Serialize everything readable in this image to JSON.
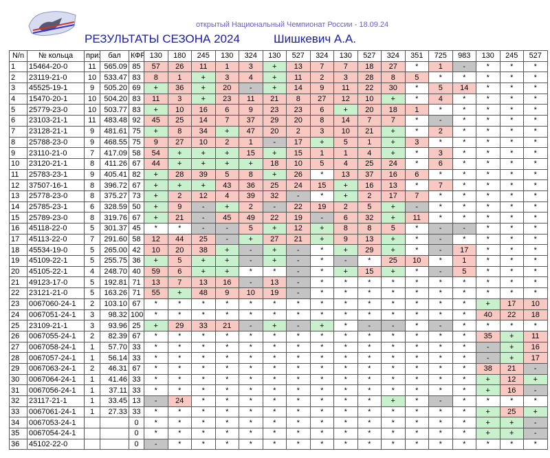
{
  "header": {
    "subtitle": "открытый Национальный Чемпионат России - 18.09.24",
    "title": "РЕЗУЛЬТАТЫ СЕЗОНА 2024",
    "owner": "Шишкевич А.А."
  },
  "table": {
    "columns": [
      "N/n",
      "№ кольца",
      "приз",
      "бал",
      "КФР",
      "130",
      "180",
      "245",
      "130",
      "324",
      "130",
      "527",
      "324",
      "130",
      "527",
      "324",
      "351",
      "725",
      "983",
      "130",
      "245",
      "527"
    ],
    "rows": [
      [
        "1",
        "15464-20-0",
        "11",
        "565.09",
        "85",
        "57",
        "26",
        "11",
        "1",
        "3",
        "+",
        "13",
        "7",
        "7",
        "18",
        "27",
        "*",
        "1",
        "-",
        "*",
        "*",
        "*"
      ],
      [
        "2",
        "23119-21-0",
        "10",
        "533.47",
        "83",
        "8",
        "1",
        "+",
        "3",
        "4",
        "+",
        "11",
        "2",
        "3",
        "28",
        "8",
        "5",
        "*",
        "*",
        "*",
        "*",
        "*"
      ],
      [
        "3",
        "45525-19-1",
        "9",
        "505.20",
        "69",
        "+",
        "36",
        "+",
        "20",
        "-",
        "+",
        "14",
        "9",
        "11",
        "22",
        "30",
        "*",
        "5",
        "14",
        "*",
        "*",
        "*"
      ],
      [
        "4",
        "15470-20-1",
        "10",
        "504.20",
        "83",
        "11",
        "3",
        "+",
        "23",
        "11",
        "21",
        "8",
        "27",
        "12",
        "10",
        "+",
        "*",
        "4",
        "*",
        "*",
        "*",
        "*"
      ],
      [
        "5",
        "25779-23-0",
        "10",
        "503.77",
        "83",
        "+",
        "10",
        "16",
        "6",
        "9",
        "23",
        "23",
        "6",
        "+",
        "20",
        "18",
        "1",
        "*",
        "*",
        "*",
        "*",
        "*"
      ],
      [
        "6",
        "23103-21-1",
        "11",
        "483.48",
        "92",
        "45",
        "25",
        "14",
        "7",
        "37",
        "29",
        "20",
        "8",
        "14",
        "7",
        "7",
        "*",
        "-",
        "*",
        "*",
        "*",
        "*"
      ],
      [
        "7",
        "23128-21-1",
        "9",
        "481.61",
        "75",
        "+",
        "8",
        "34",
        "+",
        "47",
        "20",
        "2",
        "3",
        "10",
        "21",
        "+",
        "*",
        "2",
        "*",
        "*",
        "*",
        "*"
      ],
      [
        "8",
        "25788-23-0",
        "9",
        "468.55",
        "75",
        "9",
        "27",
        "10",
        "2",
        "1",
        "-",
        "17",
        "+",
        "5",
        "1",
        "+",
        "3",
        "*",
        "*",
        "*",
        "*",
        "*"
      ],
      [
        "9",
        "23110-21-0",
        "7",
        "417.09",
        "58",
        "54",
        "+",
        "+",
        "+",
        "15",
        "+",
        "15",
        "1",
        "1",
        "4",
        "+",
        "*",
        "3",
        "*",
        "*",
        "*",
        "*"
      ],
      [
        "10",
        "23120-21-1",
        "8",
        "411.26",
        "67",
        "44",
        "+",
        "+",
        "+",
        "+",
        "18",
        "10",
        "5",
        "4",
        "25",
        "24",
        "*",
        "6",
        "*",
        "*",
        "*",
        "*"
      ],
      [
        "11",
        "25783-23-1",
        "9",
        "405.41",
        "82",
        "+",
        "28",
        "39",
        "5",
        "8",
        "+",
        "26",
        "*",
        "13",
        "37",
        "16",
        "6",
        "*",
        "*",
        "*",
        "*",
        "*"
      ],
      [
        "12",
        "37507-16-1",
        "8",
        "396.72",
        "67",
        "+",
        "+",
        "+",
        "43",
        "36",
        "25",
        "24",
        "15",
        "+",
        "16",
        "13",
        "*",
        "7",
        "*",
        "*",
        "*",
        "*"
      ],
      [
        "13",
        "25778-23-0",
        "8",
        "375.27",
        "73",
        "+",
        "2",
        "12",
        "4",
        "39",
        "32",
        "-",
        "*",
        "+",
        "2",
        "17",
        "7",
        "*",
        "*",
        "*",
        "*",
        "*"
      ],
      [
        "14",
        "25785-23-1",
        "6",
        "328.59",
        "50",
        "+",
        "9",
        "-",
        "+",
        "2",
        "-",
        "22",
        "19",
        "2",
        "5",
        "+",
        "-",
        "*",
        "*",
        "*",
        "*",
        "*"
      ],
      [
        "15",
        "25789-23-0",
        "8",
        "319.76",
        "67",
        "+",
        "21",
        "-",
        "45",
        "49",
        "22",
        "19",
        "-",
        "6",
        "32",
        "+",
        "11",
        "*",
        "*",
        "*",
        "*",
        "*"
      ],
      [
        "16",
        "45118-22-0",
        "5",
        "301.37",
        "45",
        "*",
        "*",
        "-",
        "-",
        "5",
        "+",
        "12",
        "+",
        "8",
        "8",
        "5",
        "*",
        "-",
        "-",
        "*",
        "*",
        "*"
      ],
      [
        "17",
        "45113-22-0",
        "7",
        "291.60",
        "58",
        "12",
        "44",
        "25",
        "-",
        "+",
        "27",
        "21",
        "+",
        "9",
        "13",
        "+",
        "*",
        "-",
        "*",
        "*",
        "*",
        "*"
      ],
      [
        "18",
        "45534-19-0",
        "5",
        "265.00",
        "42",
        "10",
        "20",
        "38",
        "+",
        "-",
        "+",
        "-",
        "*",
        "+",
        "29",
        "+",
        "*",
        "-",
        "17",
        "*",
        "*",
        "*"
      ],
      [
        "19",
        "45109-22-1",
        "5",
        "255.75",
        "36",
        "+",
        "5",
        "+",
        "+",
        "-",
        "+",
        "-",
        "*",
        "-",
        "*",
        "25",
        "10",
        "*",
        "1",
        "*",
        "*",
        "*"
      ],
      [
        "20",
        "45105-22-1",
        "4",
        "248.70",
        "40",
        "59",
        "6",
        "+",
        "+",
        "*",
        "*",
        "-",
        "*",
        "+",
        "15",
        "+",
        "*",
        "-",
        "5",
        "*",
        "*",
        "*"
      ],
      [
        "21",
        "49123-17-0",
        "5",
        "192.81",
        "71",
        "13",
        "7",
        "13",
        "16",
        "-",
        "13",
        "-",
        "*",
        "*",
        "*",
        "*",
        "*",
        "*",
        "*",
        "*",
        "*",
        "*"
      ],
      [
        "22",
        "23121-21-0",
        "5",
        "163.26",
        "71",
        "55",
        "+",
        "48",
        "9",
        "10",
        "19",
        "-",
        "*",
        "*",
        "*",
        "*",
        "*",
        "*",
        "*",
        "*",
        "*",
        "*"
      ],
      [
        "23",
        "0067060-24-1",
        "2",
        "103.10",
        "67",
        "*",
        "*",
        "*",
        "*",
        "*",
        "*",
        "*",
        "*",
        "*",
        "*",
        "*",
        "*",
        "*",
        "*",
        "+",
        "17",
        "10"
      ],
      [
        "24",
        "0067051-24-1",
        "3",
        "98.32",
        "100",
        "*",
        "*",
        "*",
        "*",
        "*",
        "*",
        "*",
        "*",
        "*",
        "*",
        "*",
        "*",
        "*",
        "*",
        "40",
        "22",
        "18"
      ],
      [
        "25",
        "23109-21-1",
        "3",
        "93.96",
        "25",
        "+",
        "29",
        "33",
        "21",
        "-",
        "+",
        "-",
        "+",
        "*",
        "-",
        "-",
        "*",
        "-",
        "*",
        "*",
        "*",
        "*"
      ],
      [
        "26",
        "0067055-24-1",
        "2",
        "82.39",
        "67",
        "*",
        "*",
        "*",
        "*",
        "*",
        "*",
        "*",
        "*",
        "*",
        "*",
        "*",
        "*",
        "*",
        "*",
        "35",
        "+",
        "11"
      ],
      [
        "27",
        "0067058-24-1",
        "1",
        "57.70",
        "33",
        "*",
        "*",
        "*",
        "*",
        "*",
        "*",
        "*",
        "*",
        "*",
        "*",
        "*",
        "*",
        "*",
        "*",
        "-",
        "+",
        "16"
      ],
      [
        "28",
        "0067057-24-1",
        "1",
        "56.14",
        "33",
        "*",
        "*",
        "*",
        "*",
        "*",
        "*",
        "*",
        "*",
        "*",
        "*",
        "*",
        "*",
        "*",
        "*",
        "-",
        "+",
        "17"
      ],
      [
        "29",
        "0067063-24-1",
        "2",
        "46.31",
        "67",
        "*",
        "*",
        "*",
        "*",
        "*",
        "*",
        "*",
        "*",
        "*",
        "*",
        "*",
        "*",
        "*",
        "*",
        "38",
        "21",
        "-"
      ],
      [
        "30",
        "0067064-24-1",
        "1",
        "41.46",
        "33",
        "*",
        "*",
        "*",
        "*",
        "*",
        "*",
        "*",
        "*",
        "*",
        "*",
        "*",
        "*",
        "*",
        "*",
        "+",
        "12",
        "+"
      ],
      [
        "31",
        "0067056-24-1",
        "1",
        "37.11",
        "33",
        "*",
        "*",
        "*",
        "*",
        "*",
        "*",
        "*",
        "*",
        "*",
        "*",
        "*",
        "*",
        "*",
        "*",
        "+",
        "16",
        "-"
      ],
      [
        "32",
        "23117-21-1",
        "1",
        "33.45",
        "13",
        "-",
        "24",
        "*",
        "*",
        "*",
        "*",
        "*",
        "*",
        "*",
        "*",
        "+",
        "*",
        "-",
        "*",
        "*",
        "*",
        "*"
      ],
      [
        "33",
        "0067061-24-1",
        "1",
        "27.33",
        "33",
        "*",
        "*",
        "*",
        "*",
        "*",
        "*",
        "*",
        "*",
        "*",
        "*",
        "*",
        "*",
        "*",
        "*",
        "+",
        "25",
        "+"
      ],
      [
        "34",
        "0067053-24-1",
        null,
        null,
        "0",
        "*",
        "*",
        "*",
        "*",
        "*",
        "*",
        "*",
        "*",
        "*",
        "*",
        "*",
        "*",
        "*",
        "*",
        "+",
        "+",
        "-"
      ],
      [
        "35",
        "0067054-24-1",
        null,
        null,
        "0",
        "*",
        "*",
        "*",
        "*",
        "*",
        "*",
        "*",
        "*",
        "*",
        "*",
        "*",
        "*",
        "*",
        "*",
        "+",
        "+",
        "-"
      ],
      [
        "36",
        "45102-22-0",
        null,
        null,
        "0",
        "-",
        "*",
        "*",
        "*",
        "*",
        "*",
        "*",
        "*",
        "*",
        "*",
        "*",
        "*",
        "*",
        "*",
        "*",
        "*",
        "*"
      ]
    ]
  }
}
